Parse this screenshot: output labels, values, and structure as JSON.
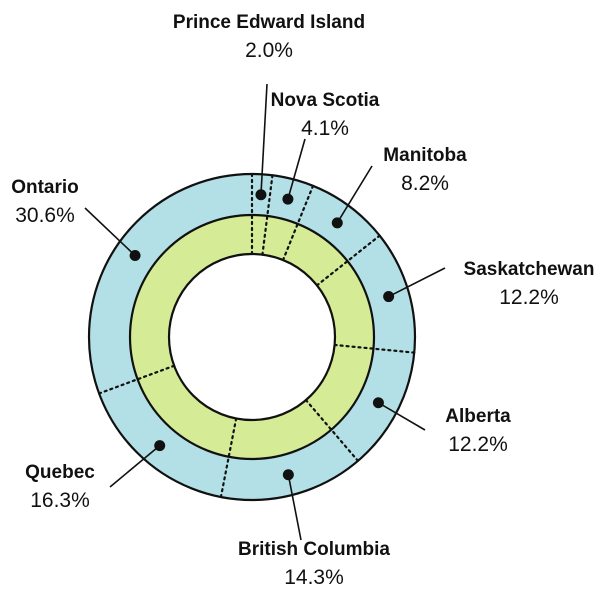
{
  "chart_data": {
    "type": "pie",
    "variant": "double-ring-donut",
    "title": "",
    "categories": [
      "Prince Edward Island",
      "Nova Scotia",
      "Manitoba",
      "Saskatchewan",
      "Alberta",
      "British Columbia",
      "Quebec",
      "Ontario"
    ],
    "values": [
      2.0,
      4.1,
      8.2,
      12.2,
      12.2,
      14.3,
      16.3,
      30.6
    ],
    "value_labels": [
      "2.0%",
      "4.1%",
      "8.2%",
      "12.2%",
      "12.2%",
      "14.3%",
      "16.3%",
      "30.6%"
    ],
    "unit": "%",
    "colors": {
      "outer_ring": "#b3e0e6",
      "inner_ring": "#d5eb95",
      "center": "#ffffff",
      "outline": "#111111"
    }
  }
}
